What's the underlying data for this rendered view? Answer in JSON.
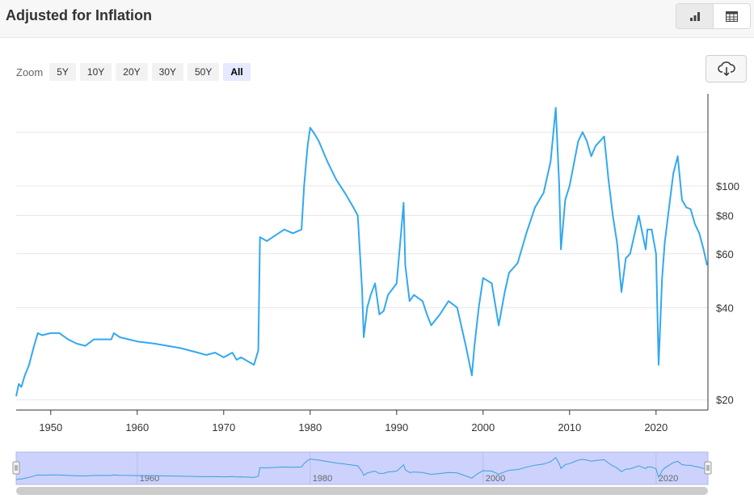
{
  "header": {
    "title": "Adjusted for Inflation",
    "view_toggle": [
      {
        "icon": "bar-chart-icon",
        "active": true
      },
      {
        "icon": "table-icon",
        "active": false
      }
    ]
  },
  "zoom": {
    "label": "Zoom",
    "options": [
      "5Y",
      "10Y",
      "20Y",
      "30Y",
      "50Y",
      "All"
    ],
    "selected": "All"
  },
  "download": {
    "icon": "cloud-download-icon"
  },
  "colors": {
    "line": "#33a8ef",
    "grid": "#e6e6e6",
    "navigator_fill": "#ccd2fb",
    "navigator_line": "#3aa0e0"
  },
  "chart_data": {
    "type": "line",
    "title": "",
    "xlabel": "",
    "ylabel": "",
    "yscale": "log",
    "xlim": [
      1946,
      2026
    ],
    "ylim": [
      18.5,
      200
    ],
    "grid": "horizontal",
    "x_ticks": [
      "1950",
      "1960",
      "1970",
      "1980",
      "1990",
      "2000",
      "2010",
      "2020"
    ],
    "y_ticks": [
      {
        "value": 20,
        "label": "$20"
      },
      {
        "value": 40,
        "label": "$40"
      },
      {
        "value": 60,
        "label": "$60"
      },
      {
        "value": 80,
        "label": "$80"
      },
      {
        "value": 100,
        "label": "$100"
      }
    ],
    "navigator_ticks": [
      "1960",
      "1980",
      "2000",
      "2020"
    ],
    "series": [
      {
        "points": [
          [
            1946.0,
            20.5
          ],
          [
            1946.3,
            22.5
          ],
          [
            1946.6,
            22.0
          ],
          [
            1947.0,
            24.0
          ],
          [
            1947.5,
            26.0
          ],
          [
            1948.0,
            29.5
          ],
          [
            1948.5,
            33.0
          ],
          [
            1949.0,
            32.5
          ],
          [
            1950.0,
            33.0
          ],
          [
            1951.0,
            33.0
          ],
          [
            1952.0,
            31.5
          ],
          [
            1953.0,
            30.5
          ],
          [
            1954.0,
            30.0
          ],
          [
            1955.0,
            31.5
          ],
          [
            1956.0,
            31.5
          ],
          [
            1957.0,
            31.5
          ],
          [
            1957.3,
            33.0
          ],
          [
            1958.0,
            32.0
          ],
          [
            1959.0,
            31.5
          ],
          [
            1960.0,
            31.0
          ],
          [
            1962.0,
            30.5
          ],
          [
            1965.0,
            29.5
          ],
          [
            1967.0,
            28.5
          ],
          [
            1968.0,
            28.0
          ],
          [
            1969.0,
            28.5
          ],
          [
            1970.0,
            27.5
          ],
          [
            1971.0,
            28.5
          ],
          [
            1971.5,
            27.0
          ],
          [
            1972.0,
            27.5
          ],
          [
            1973.0,
            26.5
          ],
          [
            1973.5,
            26.0
          ],
          [
            1974.0,
            29.0
          ],
          [
            1974.2,
            68.0
          ],
          [
            1975.0,
            66.0
          ],
          [
            1976.0,
            69.0
          ],
          [
            1977.0,
            72.0
          ],
          [
            1978.0,
            70.0
          ],
          [
            1979.0,
            72.0
          ],
          [
            1979.3,
            100.0
          ],
          [
            1979.7,
            135.0
          ],
          [
            1980.0,
            155.0
          ],
          [
            1980.5,
            148.0
          ],
          [
            1981.0,
            140.0
          ],
          [
            1982.0,
            120.0
          ],
          [
            1983.0,
            105.0
          ],
          [
            1984.0,
            95.0
          ],
          [
            1985.0,
            85.0
          ],
          [
            1985.5,
            80.0
          ],
          [
            1986.0,
            46.0
          ],
          [
            1986.2,
            32.0
          ],
          [
            1986.6,
            40.0
          ],
          [
            1987.0,
            44.0
          ],
          [
            1987.5,
            48.0
          ],
          [
            1988.0,
            38.0
          ],
          [
            1988.5,
            39.0
          ],
          [
            1989.0,
            44.0
          ],
          [
            1990.0,
            48.0
          ],
          [
            1990.5,
            70.0
          ],
          [
            1990.8,
            88.0
          ],
          [
            1991.0,
            55.0
          ],
          [
            1991.5,
            42.0
          ],
          [
            1992.0,
            44.0
          ],
          [
            1993.0,
            42.0
          ],
          [
            1993.5,
            38.0
          ],
          [
            1994.0,
            35.0
          ],
          [
            1995.0,
            38.0
          ],
          [
            1996.0,
            42.0
          ],
          [
            1997.0,
            40.0
          ],
          [
            1998.0,
            30.0
          ],
          [
            1998.7,
            24.0
          ],
          [
            1999.0,
            30.0
          ],
          [
            1999.5,
            40.0
          ],
          [
            2000.0,
            50.0
          ],
          [
            2001.0,
            48.0
          ],
          [
            2001.8,
            35.0
          ],
          [
            2002.5,
            45.0
          ],
          [
            2003.0,
            52.0
          ],
          [
            2004.0,
            56.0
          ],
          [
            2005.0,
            70.0
          ],
          [
            2006.0,
            85.0
          ],
          [
            2007.0,
            95.0
          ],
          [
            2007.8,
            120.0
          ],
          [
            2008.4,
            180.0
          ],
          [
            2008.8,
            100.0
          ],
          [
            2009.0,
            62.0
          ],
          [
            2009.5,
            90.0
          ],
          [
            2010.0,
            100.0
          ],
          [
            2011.0,
            140.0
          ],
          [
            2011.5,
            150.0
          ],
          [
            2012.0,
            140.0
          ],
          [
            2012.5,
            125.0
          ],
          [
            2013.0,
            135.0
          ],
          [
            2014.0,
            145.0
          ],
          [
            2014.5,
            105.0
          ],
          [
            2015.0,
            80.0
          ],
          [
            2015.5,
            65.0
          ],
          [
            2016.0,
            45.0
          ],
          [
            2016.5,
            58.0
          ],
          [
            2017.0,
            60.0
          ],
          [
            2018.0,
            80.0
          ],
          [
            2018.8,
            62.0
          ],
          [
            2019.0,
            72.0
          ],
          [
            2019.5,
            72.0
          ],
          [
            2020.0,
            60.0
          ],
          [
            2020.3,
            26.0
          ],
          [
            2020.7,
            50.0
          ],
          [
            2021.0,
            65.0
          ],
          [
            2021.5,
            85.0
          ],
          [
            2022.0,
            110.0
          ],
          [
            2022.5,
            125.0
          ],
          [
            2023.0,
            90.0
          ],
          [
            2023.5,
            85.0
          ],
          [
            2024.0,
            84.0
          ],
          [
            2024.5,
            75.0
          ],
          [
            2025.0,
            70.0
          ],
          [
            2025.5,
            62.0
          ],
          [
            2025.9,
            55.0
          ]
        ]
      }
    ]
  }
}
